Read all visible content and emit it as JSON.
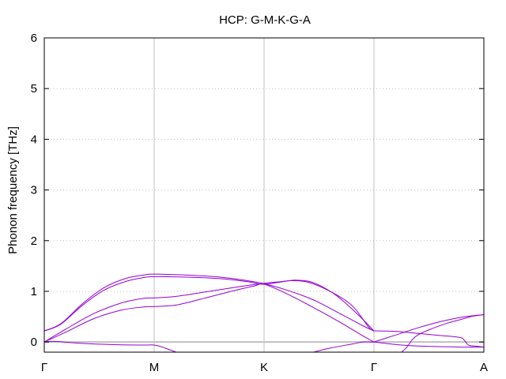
{
  "chart_data": {
    "type": "line",
    "title": "HCP: G-M-K-G-A",
    "xlabel": "",
    "ylabel": "Phonon frequency [THz]",
    "ylim": [
      -0.2,
      6
    ],
    "xlim": [
      0,
      4
    ],
    "yticks": [
      0,
      1,
      2,
      3,
      4,
      5,
      6
    ],
    "ytick_labels": [
      "0",
      "1",
      "2",
      "3",
      "4",
      "5",
      "6"
    ],
    "xticks": [
      0,
      1,
      2,
      3,
      4
    ],
    "xtick_labels": [
      "Γ",
      "M",
      "K",
      "Γ",
      "A"
    ],
    "grid": true,
    "zero_line": true,
    "line_color": "#9400d3",
    "grid_color": "#c0c0c0",
    "zero_line_color": "#c0c0c0",
    "series": [
      {
        "points": [
          [
            0,
            0.22
          ],
          [
            0.15,
            0.36
          ],
          [
            0.35,
            0.76
          ],
          [
            0.55,
            1.08
          ],
          [
            0.75,
            1.26
          ],
          [
            0.9,
            1.32
          ],
          [
            1,
            1.34
          ],
          [
            1.3,
            1.32
          ],
          [
            1.6,
            1.28
          ],
          [
            1.85,
            1.21
          ],
          [
            2,
            1.15
          ],
          [
            2.2,
            1.03
          ],
          [
            2.45,
            0.83
          ],
          [
            2.7,
            0.55
          ],
          [
            2.9,
            0.32
          ],
          [
            3,
            0.22
          ]
        ]
      },
      {
        "points": [
          [
            0,
            0.22
          ],
          [
            0.15,
            0.35
          ],
          [
            0.35,
            0.73
          ],
          [
            0.55,
            1.03
          ],
          [
            0.75,
            1.2
          ],
          [
            0.9,
            1.27
          ],
          [
            1,
            1.29
          ],
          [
            1.3,
            1.28
          ],
          [
            1.6,
            1.25
          ],
          [
            1.85,
            1.19
          ],
          [
            2,
            1.14
          ],
          [
            2.2,
            1.2
          ],
          [
            2.3,
            1.22
          ],
          [
            2.45,
            1.17
          ],
          [
            2.65,
            0.93
          ],
          [
            2.85,
            0.55
          ],
          [
            3,
            0.22
          ]
        ]
      },
      {
        "points": [
          [
            0,
            0
          ],
          [
            0.2,
            0.26
          ],
          [
            0.45,
            0.56
          ],
          [
            0.7,
            0.77
          ],
          [
            0.9,
            0.86
          ],
          [
            1,
            0.87
          ],
          [
            1.2,
            0.9
          ],
          [
            1.5,
            1.0
          ],
          [
            1.8,
            1.1
          ],
          [
            2,
            1.16
          ],
          [
            2.15,
            1.19
          ],
          [
            2.25,
            1.21
          ],
          [
            2.4,
            1.18
          ],
          [
            2.6,
            1.0
          ],
          [
            2.8,
            0.72
          ],
          [
            2.95,
            0.3
          ],
          [
            3,
            0.22
          ]
        ]
      },
      {
        "points": [
          [
            0,
            0
          ],
          [
            0.2,
            0.2
          ],
          [
            0.45,
            0.46
          ],
          [
            0.7,
            0.63
          ],
          [
            0.9,
            0.69
          ],
          [
            1,
            0.7
          ],
          [
            1.2,
            0.73
          ],
          [
            1.45,
            0.86
          ],
          [
            1.7,
            1.0
          ],
          [
            1.9,
            1.1
          ],
          [
            2,
            1.14
          ],
          [
            2.2,
            0.96
          ],
          [
            2.45,
            0.68
          ],
          [
            2.7,
            0.38
          ],
          [
            2.9,
            0.12
          ],
          [
            3,
            0
          ]
        ]
      },
      {
        "points": [
          [
            0,
            0
          ],
          [
            0.05,
            0.01
          ],
          [
            0.12,
            0.01
          ],
          [
            0.3,
            -0.02
          ],
          [
            0.6,
            -0.05
          ],
          [
            0.9,
            -0.06
          ],
          [
            1,
            -0.06
          ],
          [
            1.1,
            -0.12
          ],
          [
            1.2,
            -0.2
          ]
        ]
      },
      {
        "points": [
          [
            2.45,
            -0.2
          ],
          [
            2.6,
            -0.12
          ],
          [
            2.8,
            -0.04
          ],
          [
            2.9,
            0.0
          ],
          [
            3,
            0.0
          ]
        ]
      },
      {
        "points": [
          [
            3,
            0.0
          ],
          [
            3.2,
            0.14
          ],
          [
            3.4,
            0.28
          ],
          [
            3.6,
            0.4
          ],
          [
            3.8,
            0.49
          ],
          [
            4,
            0.54
          ]
        ]
      },
      {
        "points": [
          [
            3,
            0.22
          ],
          [
            3.2,
            0.21
          ],
          [
            3.4,
            0.17
          ],
          [
            3.6,
            0.13
          ],
          [
            3.78,
            0.09
          ],
          [
            3.82,
            0.04
          ],
          [
            3.86,
            -0.06
          ],
          [
            3.92,
            -0.08
          ],
          [
            4,
            -0.1
          ]
        ]
      },
      {
        "points": [
          [
            3,
            0.0
          ],
          [
            3.2,
            -0.05
          ],
          [
            3.4,
            -0.08
          ],
          [
            3.6,
            -0.09
          ],
          [
            3.8,
            -0.1
          ],
          [
            4,
            -0.1
          ]
        ]
      },
      {
        "points": [
          [
            3.25,
            -0.2
          ],
          [
            3.3,
            -0.1
          ],
          [
            3.35,
            0.05
          ],
          [
            3.4,
            0.14
          ],
          [
            3.5,
            0.24
          ],
          [
            3.65,
            0.36
          ],
          [
            3.8,
            0.45
          ],
          [
            3.9,
            0.51
          ],
          [
            4,
            0.54
          ]
        ]
      }
    ]
  }
}
